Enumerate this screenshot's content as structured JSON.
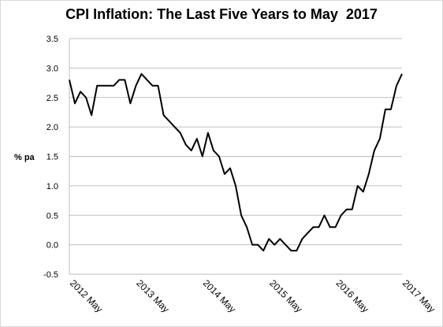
{
  "chart_data": {
    "type": "line",
    "title": "CPI Inflation: The Last Five Years to May  2017",
    "xlabel": "",
    "ylabel": "% pa",
    "ylim": [
      -0.5,
      3.5
    ],
    "yticks": [
      "3.5",
      "3.0",
      "2.5",
      "2.0",
      "1.5",
      "1.0",
      "0.5",
      "0.0",
      "-0.5"
    ],
    "ytick_values": [
      3.5,
      3.0,
      2.5,
      2.0,
      1.5,
      1.0,
      0.5,
      0.0,
      -0.5
    ],
    "xtick_labels": [
      "2012 May",
      "2013 May",
      "2014 May",
      "2015 May",
      "2016 May",
      "2017 May"
    ],
    "xtick_index": [
      0,
      12,
      24,
      36,
      48,
      60
    ],
    "grid": true,
    "legend": "none",
    "line_color": "#000000",
    "grid_color": "#bfbfbf",
    "series": [
      {
        "values": [
          2.8,
          2.4,
          2.6,
          2.5,
          2.2,
          2.7,
          2.7,
          2.7,
          2.7,
          2.8,
          2.8,
          2.4,
          2.7,
          2.9,
          2.8,
          2.7,
          2.7,
          2.2,
          2.1,
          2.0,
          1.9,
          1.7,
          1.6,
          1.8,
          1.5,
          1.9,
          1.6,
          1.5,
          1.2,
          1.3,
          1.0,
          0.5,
          0.3,
          0.0,
          0.0,
          -0.1,
          0.1,
          0.0,
          0.1,
          0.0,
          -0.1,
          -0.1,
          0.1,
          0.2,
          0.3,
          0.3,
          0.5,
          0.3,
          0.3,
          0.5,
          0.6,
          0.6,
          1.0,
          0.9,
          1.2,
          1.6,
          1.8,
          2.3,
          2.3,
          2.7,
          2.9
        ]
      }
    ]
  }
}
